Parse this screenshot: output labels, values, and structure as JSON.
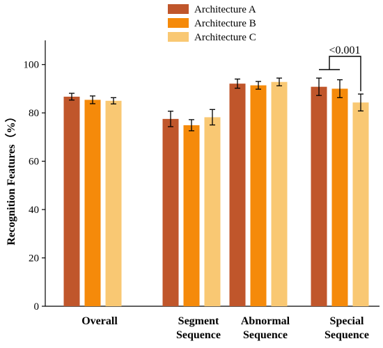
{
  "chart_data": {
    "type": "bar",
    "ylabel": "Recognition Features（%）",
    "xlabel": "",
    "ylim": [
      0,
      110
    ],
    "yticks": [
      0,
      20,
      40,
      60,
      80,
      100
    ],
    "categories": [
      [
        "Overall"
      ],
      [
        "Segment",
        "Sequence"
      ],
      [
        "Abnormal",
        "Sequence"
      ],
      [
        "Special",
        "Sequence"
      ]
    ],
    "series": [
      {
        "name": "Architecture A",
        "color": "#c0562b",
        "values": [
          86.7,
          77.5,
          92.1,
          90.8
        ],
        "errors": [
          1.4,
          3.2,
          1.9,
          3.6
        ]
      },
      {
        "name": "Architecture B",
        "color": "#f58a0a",
        "values": [
          85.4,
          74.9,
          91.4,
          90.0
        ],
        "errors": [
          1.6,
          2.3,
          1.6,
          3.7
        ]
      },
      {
        "name": "Architecture C",
        "color": "#f9c873",
        "values": [
          85.0,
          78.2,
          92.8,
          84.3
        ],
        "errors": [
          1.3,
          3.2,
          1.6,
          3.5
        ]
      }
    ],
    "legend_position": "top",
    "annotations": [
      {
        "text": "<0.001",
        "category_index": 3,
        "compare": [
          "Architecture A + Architecture B",
          "Architecture C"
        ]
      }
    ]
  }
}
